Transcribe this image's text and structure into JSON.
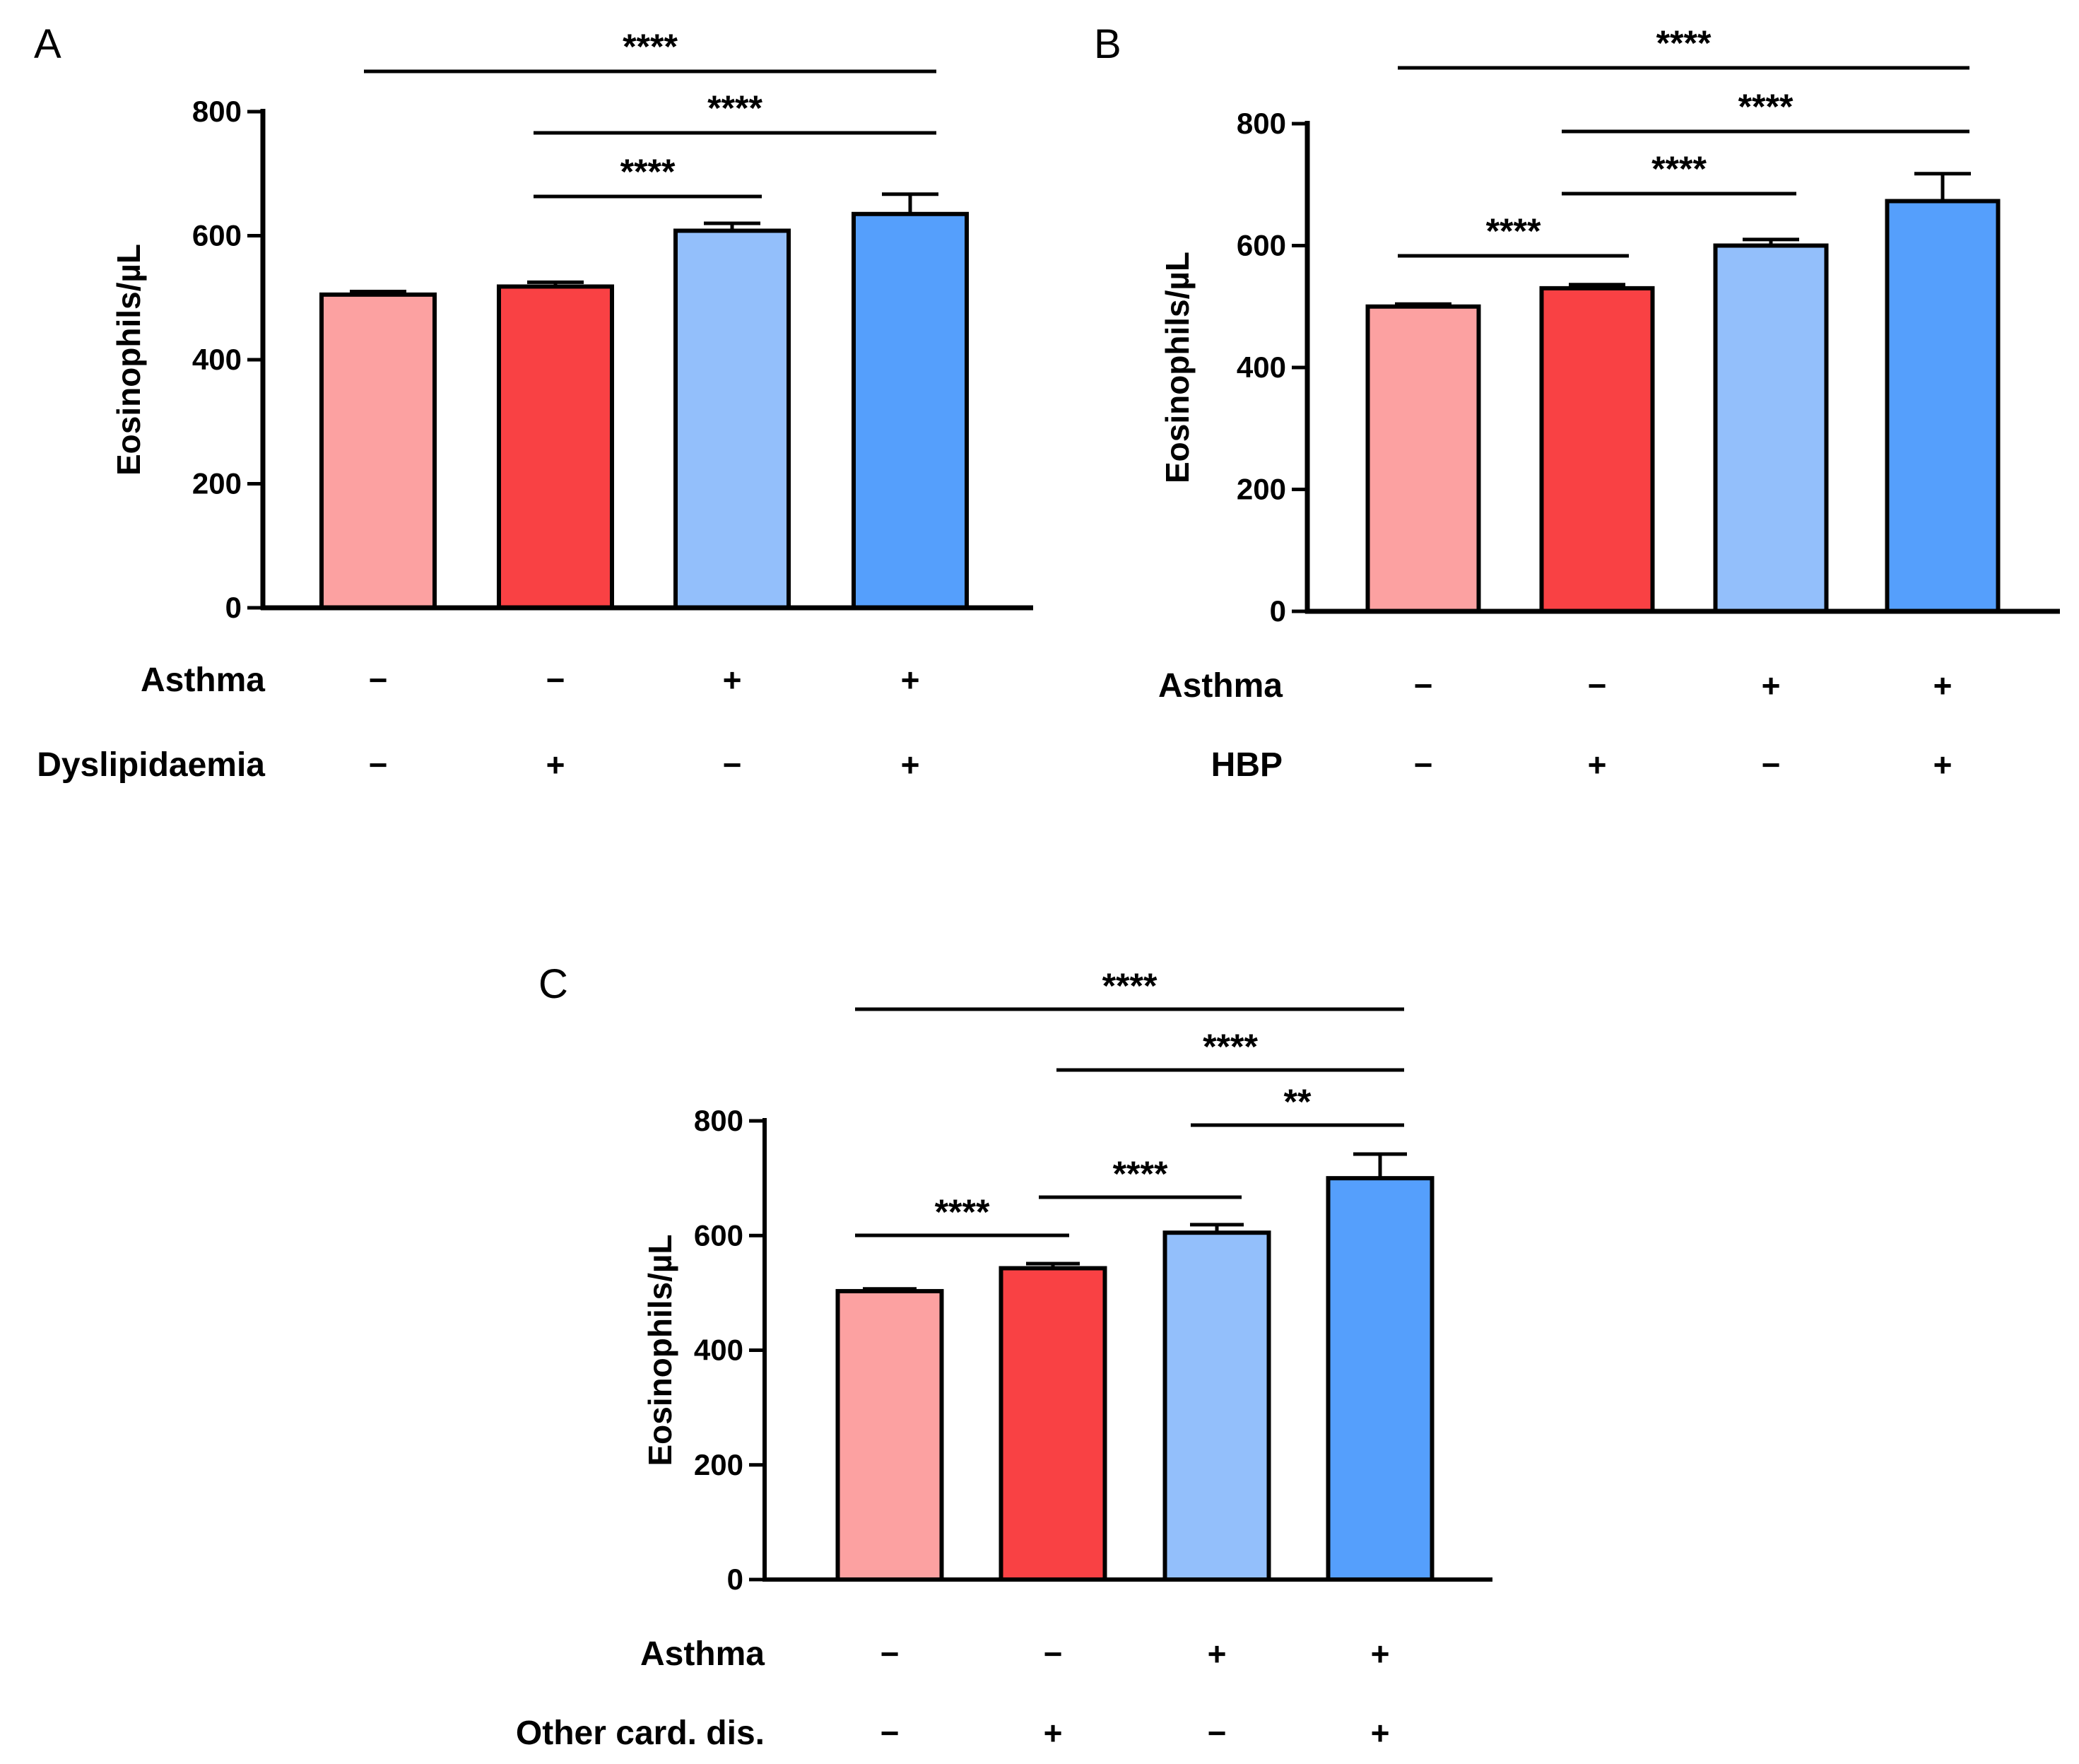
{
  "chart_data": [
    {
      "panel": "A",
      "type": "bar",
      "ylabel": "Eosinophils/µL",
      "ylim": [
        0,
        800
      ],
      "yticks": [
        0,
        200,
        400,
        600,
        800
      ],
      "values": [
        505,
        518,
        608,
        635
      ],
      "errors": [
        5,
        7,
        12,
        32
      ],
      "colors": [
        "#fca1a1",
        "#f94144",
        "#93bffb",
        "#559ffc"
      ],
      "factors": [
        {
          "label": "Asthma",
          "signs": [
            "−",
            "−",
            "+",
            "+"
          ]
        },
        {
          "label": "Dyslipidaemia",
          "signs": [
            "−",
            "+",
            "−",
            "+"
          ]
        }
      ],
      "comparisons": [
        {
          "from": 0,
          "to": 3,
          "stars": "****"
        },
        {
          "from": 1,
          "to": 3,
          "stars": "****"
        },
        {
          "from": 1,
          "to": 2,
          "stars": "****"
        }
      ]
    },
    {
      "panel": "B",
      "type": "bar",
      "ylabel": "Eosinophils/µL",
      "ylim": [
        0,
        800
      ],
      "yticks": [
        0,
        200,
        400,
        600,
        800
      ],
      "values": [
        500,
        530,
        600,
        673
      ],
      "errors": [
        4,
        6,
        10,
        45
      ],
      "colors": [
        "#fca1a1",
        "#f94144",
        "#93bffb",
        "#559ffc"
      ],
      "factors": [
        {
          "label": "Asthma",
          "signs": [
            "−",
            "−",
            "+",
            "+"
          ]
        },
        {
          "label": "HBP",
          "signs": [
            "−",
            "+",
            "−",
            "+"
          ]
        }
      ],
      "comparisons": [
        {
          "from": 0,
          "to": 3,
          "stars": "****"
        },
        {
          "from": 1,
          "to": 3,
          "stars": "****"
        },
        {
          "from": 1,
          "to": 2,
          "stars": "****"
        },
        {
          "from": 0,
          "to": 1,
          "stars": "****"
        }
      ]
    },
    {
      "panel": "C",
      "type": "bar",
      "ylabel": "Eosinophils/µL",
      "ylim": [
        0,
        800
      ],
      "yticks": [
        0,
        200,
        400,
        600,
        800
      ],
      "values": [
        503,
        543,
        605,
        700
      ],
      "errors": [
        4,
        8,
        14,
        42
      ],
      "colors": [
        "#fca1a1",
        "#f94144",
        "#93bffb",
        "#559ffc"
      ],
      "factors": [
        {
          "label": "Asthma",
          "signs": [
            "−",
            "−",
            "+",
            "+"
          ]
        },
        {
          "label": "Other card. dis.",
          "signs": [
            "−",
            "+",
            "−",
            "+"
          ]
        }
      ],
      "comparisons": [
        {
          "from": 0,
          "to": 3,
          "stars": "****"
        },
        {
          "from": 1,
          "to": 3,
          "stars": "****"
        },
        {
          "from": 2,
          "to": 3,
          "stars": "**"
        },
        {
          "from": 1,
          "to": 2,
          "stars": "****"
        },
        {
          "from": 0,
          "to": 1,
          "stars": "****"
        }
      ]
    }
  ]
}
